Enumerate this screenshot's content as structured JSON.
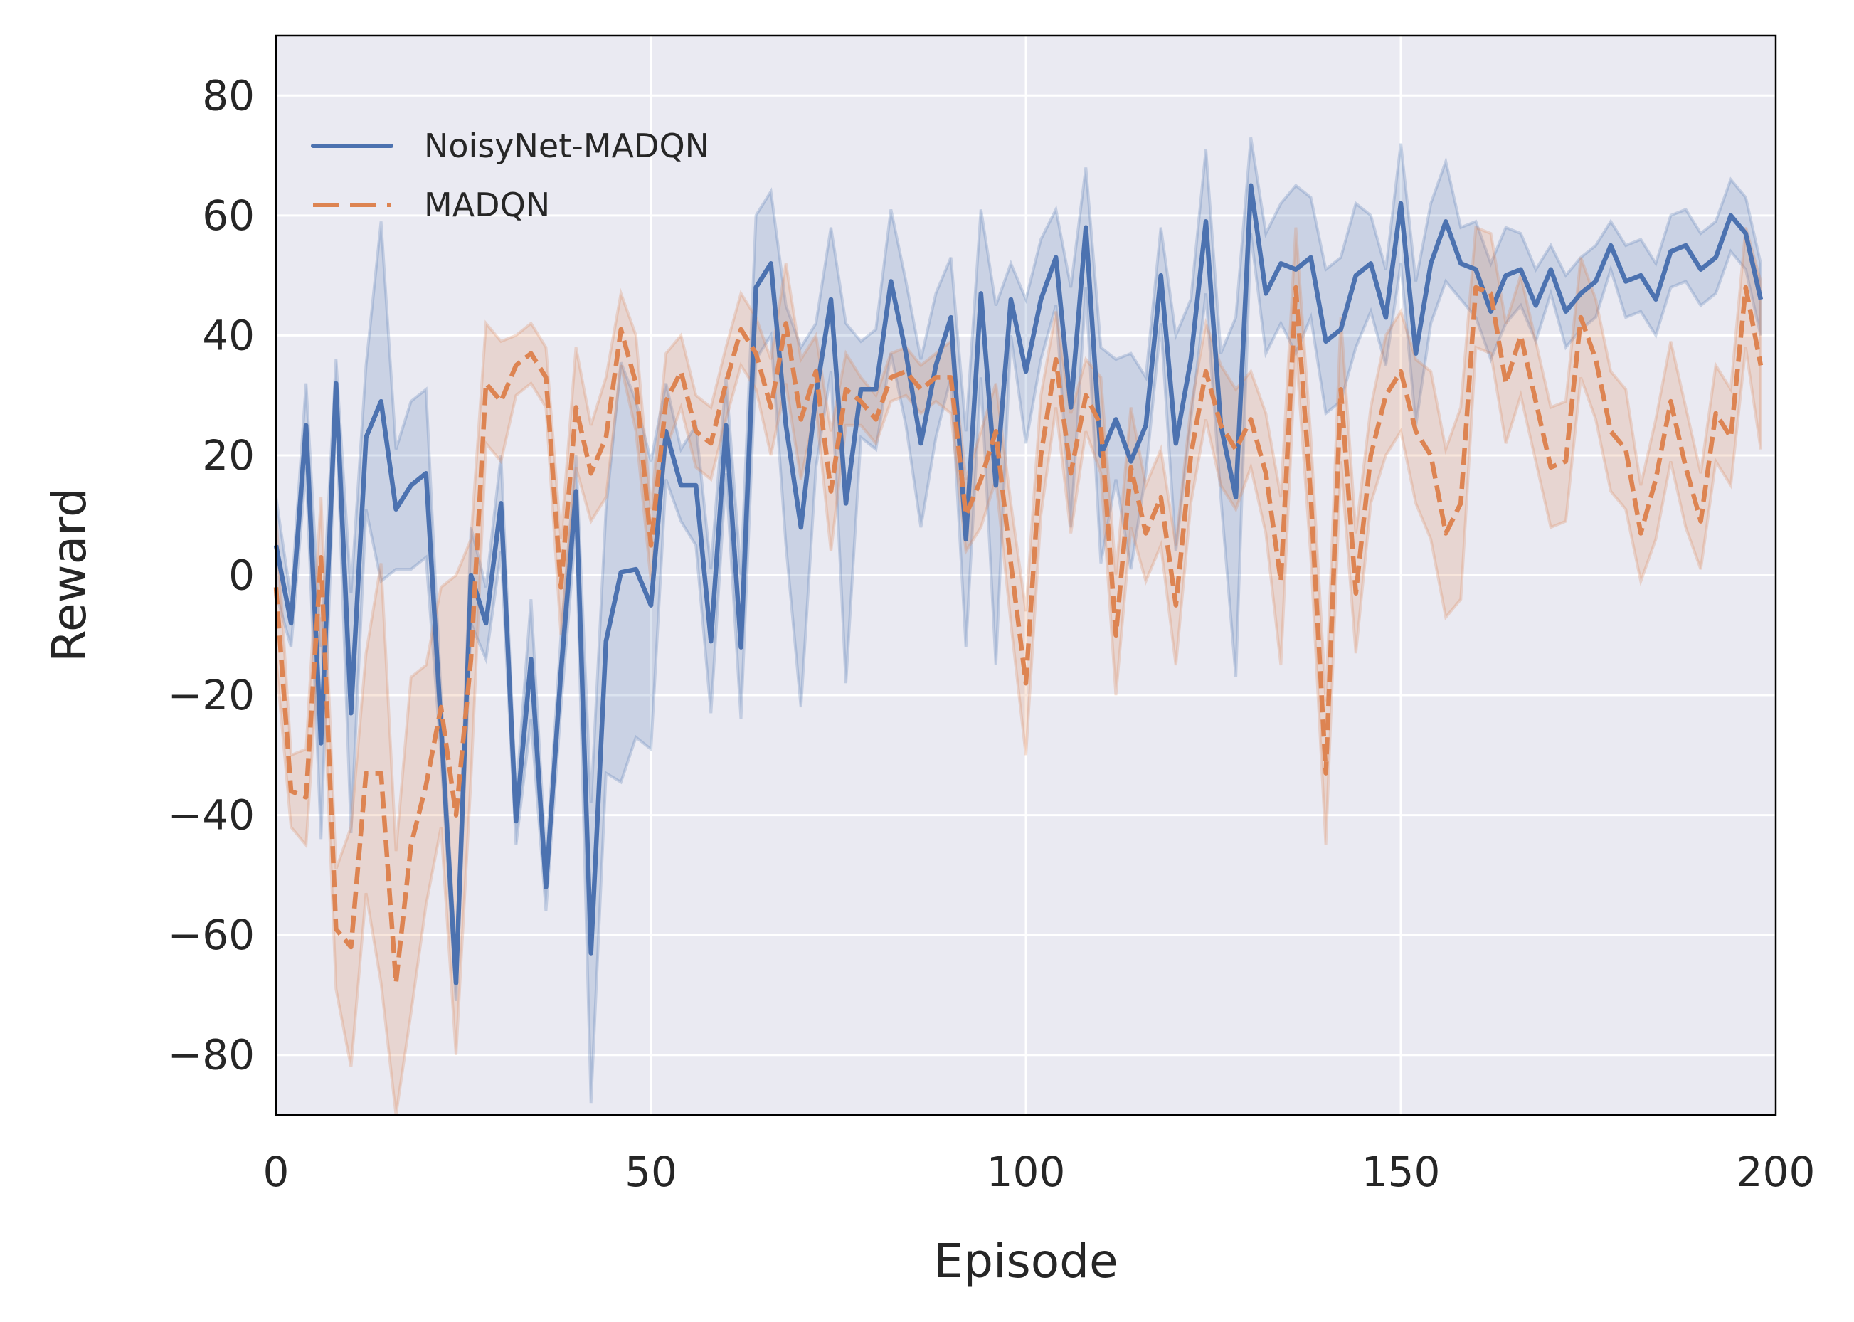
{
  "colors": {
    "background": "#ffffff",
    "plot_background": "#eaeaf2",
    "grid": "#ffffff",
    "axis_spine": "#000000",
    "series_1": "#4c72b0",
    "series_2": "#dd8452",
    "text": "#262626"
  },
  "chart_data": {
    "type": "line",
    "title": "",
    "xlabel": "Episode",
    "ylabel": "Reward",
    "xlim": [
      0,
      200
    ],
    "ylim": [
      -90,
      90
    ],
    "grid": true,
    "legend_position": "upper left",
    "xticks": [
      0,
      50,
      100,
      150,
      200
    ],
    "xtick_labels": [
      "0",
      "50",
      "100",
      "150",
      "200"
    ],
    "yticks": [
      80,
      60,
      40,
      20,
      0,
      -20,
      -40,
      -60,
      -80
    ],
    "ytick_labels": [
      "80",
      "60",
      "40",
      "20",
      "0",
      "−20",
      "−40",
      "−60",
      "−80"
    ],
    "x": [
      0,
      2,
      4,
      6,
      8,
      10,
      12,
      14,
      16,
      18,
      20,
      22,
      24,
      26,
      28,
      30,
      32,
      34,
      36,
      38,
      40,
      42,
      44,
      46,
      48,
      50,
      52,
      54,
      56,
      58,
      60,
      62,
      64,
      66,
      68,
      70,
      72,
      74,
      76,
      78,
      80,
      82,
      84,
      86,
      88,
      90,
      92,
      94,
      96,
      98,
      100,
      102,
      104,
      106,
      108,
      110,
      112,
      114,
      116,
      118,
      120,
      122,
      124,
      126,
      128,
      130,
      132,
      134,
      136,
      138,
      140,
      142,
      144,
      146,
      148,
      150,
      152,
      154,
      156,
      158,
      160,
      162,
      164,
      166,
      168,
      170,
      172,
      174,
      176,
      178,
      180,
      182,
      184,
      186,
      188,
      190,
      192,
      194,
      196,
      198
    ],
    "series": [
      {
        "name": "NoisyNet-MADQN",
        "style": "solid",
        "values": [
          5,
          -8,
          25,
          -28,
          32,
          -23,
          23,
          29,
          11,
          15,
          17,
          -25,
          -68,
          0,
          -8,
          12,
          -41,
          -14,
          -52,
          -16,
          14,
          -63,
          -11,
          0.5,
          1,
          -5,
          24,
          15,
          15,
          -11,
          25,
          -12,
          48,
          52,
          25,
          8,
          30,
          46,
          12,
          31,
          31,
          49,
          37,
          22,
          35,
          43,
          6,
          47,
          15,
          46,
          34,
          46,
          53,
          28,
          58,
          20,
          26,
          19,
          25,
          50,
          22,
          36,
          59,
          25,
          13,
          65,
          47,
          52,
          51,
          53,
          39,
          41,
          50,
          52,
          43,
          62,
          37,
          52,
          59,
          52,
          51,
          44,
          50,
          51,
          45,
          51,
          44,
          47,
          49,
          55,
          49,
          50,
          46,
          54,
          55,
          51,
          53,
          60,
          57,
          46
        ],
        "band_halfwidth": [
          8,
          4,
          7,
          16,
          4,
          20,
          12,
          30,
          10,
          14,
          14,
          5,
          3,
          8,
          6,
          8,
          4,
          10,
          4,
          6,
          6,
          25,
          22,
          35,
          28,
          24,
          8,
          6,
          10,
          12,
          8,
          12,
          12,
          12,
          20,
          30,
          12,
          12,
          30,
          8,
          10,
          12,
          12,
          14,
          12,
          10,
          18,
          14,
          30,
          6,
          12,
          10,
          8,
          20,
          10,
          18,
          10,
          18,
          8,
          8,
          18,
          10,
          12,
          12,
          30,
          8,
          10,
          10,
          14,
          10,
          12,
          12,
          12,
          8,
          8,
          10,
          12,
          10,
          10,
          6,
          8,
          8,
          8,
          6,
          6,
          4,
          6,
          6,
          6,
          4,
          6,
          6,
          6,
          6,
          6,
          6,
          6,
          6,
          6,
          6
        ]
      },
      {
        "name": "MADQN",
        "style": "dashed",
        "values": [
          -2,
          -36,
          -37,
          3,
          -59,
          -62,
          -33,
          -33,
          -68,
          -45,
          -35,
          -22,
          -40,
          -14,
          32,
          29,
          35,
          37,
          33,
          -2,
          28,
          17,
          23,
          41,
          32,
          5,
          29,
          34,
          24,
          22,
          32,
          41,
          37,
          28,
          42,
          26,
          34,
          14,
          31,
          29,
          26,
          33,
          34,
          31,
          33,
          33,
          10,
          16,
          24,
          2,
          -18,
          20,
          36,
          17,
          30,
          25,
          -10,
          18,
          7,
          13,
          -5,
          20,
          34,
          25,
          21,
          26,
          17,
          -1,
          48,
          13,
          -33,
          31,
          -3,
          20,
          30,
          34,
          24,
          20,
          7,
          12,
          48,
          47,
          32,
          40,
          29,
          18,
          19,
          43,
          36,
          24,
          21,
          7,
          16,
          29,
          18,
          9,
          27,
          23,
          48,
          35
        ],
        "band_halfwidth": [
          12,
          6,
          8,
          10,
          10,
          20,
          20,
          35,
          22,
          28,
          20,
          20,
          40,
          20,
          10,
          10,
          5,
          5,
          5,
          8,
          10,
          8,
          10,
          6,
          8,
          6,
          8,
          6,
          6,
          6,
          6,
          6,
          6,
          8,
          10,
          10,
          6,
          10,
          6,
          4,
          4,
          4,
          4,
          4,
          4,
          6,
          6,
          8,
          8,
          10,
          12,
          10,
          8,
          10,
          6,
          8,
          10,
          10,
          8,
          8,
          10,
          8,
          8,
          10,
          10,
          8,
          10,
          14,
          10,
          10,
          12,
          12,
          10,
          8,
          10,
          10,
          12,
          14,
          14,
          16,
          10,
          10,
          10,
          10,
          10,
          10,
          10,
          10,
          10,
          10,
          10,
          8,
          10,
          10,
          10,
          8,
          8,
          8,
          10,
          14
        ]
      }
    ]
  },
  "legend": {
    "items": [
      {
        "label": "NoisyNet-MADQN"
      },
      {
        "label": "MADQN"
      }
    ]
  }
}
